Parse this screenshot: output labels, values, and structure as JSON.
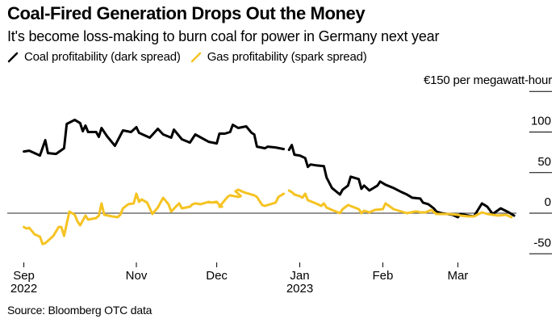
{
  "header": {
    "title": "Coal-Fired Generation Drops Out the Money",
    "subtitle": "It's become loss-making to burn coal for power in Germany next year"
  },
  "legend": [
    {
      "label": "Coal profitability (dark spread)",
      "color": "#000000",
      "icon": "diagonal-line-swatch"
    },
    {
      "label": "Gas profitability (spark spread)",
      "color": "#f5c322",
      "icon": "diagonal-line-swatch"
    }
  ],
  "footer": {
    "source": "Source: Bloomberg OTC data"
  },
  "chart_data": {
    "type": "line",
    "title": "Coal-Fired Generation Drops Out the Money",
    "subtitle": "It's become loss-making to burn coal for power in Germany next year",
    "xlabel": "",
    "ylabel": "€ per megawatt-hour",
    "unit_label": "€150 per megawatt-hour",
    "x_unit": "days since 2022-11-01",
    "xlim": [
      -44,
      143
    ],
    "ylim": [
      -50,
      150
    ],
    "yticks": [
      {
        "value": 150,
        "label": "€150 per megawatt-hour"
      },
      {
        "value": 100,
        "label": "100"
      },
      {
        "value": 50,
        "label": "50"
      },
      {
        "value": 0,
        "label": "0"
      },
      {
        "value": -50,
        "label": "-50"
      }
    ],
    "xticks": [
      {
        "value": -42,
        "label": "Sep",
        "sublabel": "2022"
      },
      {
        "value": 0,
        "label": "Nov",
        "sublabel": ""
      },
      {
        "value": 30,
        "label": "Dec",
        "sublabel": ""
      },
      {
        "value": 61,
        "label": "Jan",
        "sublabel": "2023"
      },
      {
        "value": 92,
        "label": "Feb",
        "sublabel": ""
      },
      {
        "value": 120,
        "label": "Mar",
        "sublabel": ""
      }
    ],
    "zero_line": true,
    "grid": false,
    "legend_position": "top-left",
    "series": [
      {
        "name": "Coal profitability (dark spread)",
        "color": "#000000",
        "points": [
          [
            -42,
            76
          ],
          [
            -40,
            77
          ],
          [
            -36,
            71
          ],
          [
            -34,
            90
          ],
          [
            -33,
            74
          ],
          [
            -30,
            73
          ],
          [
            -27,
            80
          ],
          [
            -26,
            110
          ],
          [
            -23,
            115
          ],
          [
            -21,
            111
          ],
          [
            -20,
            101
          ],
          [
            -19,
            108
          ],
          [
            -18,
            100
          ],
          [
            -15,
            100
          ],
          [
            -14,
            94
          ],
          [
            -13,
            105
          ],
          [
            -11,
            95
          ],
          [
            -8,
            83
          ],
          [
            -5,
            102
          ],
          [
            -2,
            100
          ],
          [
            0,
            106
          ],
          [
            1,
            99
          ],
          [
            5,
            93
          ],
          [
            8,
            104
          ],
          [
            10,
            97
          ],
          [
            13,
            93
          ],
          [
            14,
            103
          ],
          [
            17,
            91
          ],
          [
            20,
            87
          ],
          [
            22,
            97
          ],
          [
            27,
            88
          ],
          [
            30,
            86
          ],
          [
            31,
            98
          ],
          [
            33,
            98
          ],
          [
            35,
            100
          ],
          [
            36,
            109
          ],
          [
            38,
            105
          ],
          [
            41,
            107
          ],
          [
            43,
            99
          ],
          [
            44,
            97
          ],
          [
            45,
            82
          ],
          [
            48,
            80
          ],
          [
            49,
            82
          ],
          [
            52,
            81
          ],
          [
            55,
            79
          ],
          [
            56,
            null
          ],
          [
            57,
            78
          ],
          [
            58,
            84
          ],
          [
            59,
            72
          ],
          [
            61,
            71
          ],
          [
            63,
            68
          ],
          [
            64,
            57
          ],
          [
            65,
            60
          ],
          [
            67,
            59
          ],
          [
            70,
            58
          ],
          [
            71,
            44
          ],
          [
            73,
            31
          ],
          [
            76,
            23
          ],
          [
            77,
            29
          ],
          [
            79,
            34
          ],
          [
            80,
            45
          ],
          [
            83,
            42
          ],
          [
            84,
            30
          ],
          [
            85,
            34
          ],
          [
            87,
            28
          ],
          [
            90,
            34
          ],
          [
            91,
            39
          ],
          [
            93,
            35
          ],
          [
            96,
            31
          ],
          [
            99,
            26
          ],
          [
            101,
            23
          ],
          [
            103,
            19
          ],
          [
            106,
            18
          ],
          [
            107,
            13
          ],
          [
            109,
            11
          ],
          [
            111,
            6
          ],
          [
            112,
            2
          ],
          [
            114,
            0
          ],
          [
            118,
            -2
          ],
          [
            120,
            -5
          ],
          [
            121,
            -1
          ],
          [
            124,
            -3
          ],
          [
            126,
            -4
          ],
          [
            129,
            12
          ],
          [
            131,
            8
          ],
          [
            133,
            -1
          ],
          [
            136,
            6
          ],
          [
            139,
            1
          ],
          [
            141,
            -3
          ]
        ]
      },
      {
        "name": "Gas profitability (spark spread)",
        "color": "#f5c322",
        "points": [
          [
            -42,
            -17
          ],
          [
            -41,
            -19
          ],
          [
            -40,
            -18
          ],
          [
            -38,
            -26
          ],
          [
            -36,
            -29
          ],
          [
            -35,
            -38
          ],
          [
            -34,
            -37
          ],
          [
            -31,
            -28
          ],
          [
            -29,
            -17
          ],
          [
            -28,
            -17
          ],
          [
            -27,
            -28
          ],
          [
            -25,
            2
          ],
          [
            -23,
            -2
          ],
          [
            -22,
            -10
          ],
          [
            -21,
            -15
          ],
          [
            -19,
            -3
          ],
          [
            -18,
            -8
          ],
          [
            -15,
            -6
          ],
          [
            -14,
            -3
          ],
          [
            -13,
            12
          ],
          [
            -12,
            -2
          ],
          [
            -9,
            -4
          ],
          [
            -7,
            -5
          ],
          [
            -6,
            -2
          ],
          [
            -5,
            6
          ],
          [
            -3,
            11
          ],
          [
            -1,
            12
          ],
          [
            0,
            24
          ],
          [
            1,
            14
          ],
          [
            2,
            17
          ],
          [
            4,
            13
          ],
          [
            6,
            -1
          ],
          [
            8,
            7
          ],
          [
            10,
            19
          ],
          [
            12,
            11
          ],
          [
            13,
            2
          ],
          [
            15,
            9
          ],
          [
            16,
            12
          ],
          [
            17,
            6
          ],
          [
            20,
            8
          ],
          [
            21,
            11
          ],
          [
            22,
            12
          ],
          [
            24,
            11
          ],
          [
            26,
            13
          ],
          [
            27,
            14
          ],
          [
            28,
            13
          ],
          [
            30,
            14
          ],
          [
            31,
            10
          ],
          [
            32,
            8
          ],
          [
            31,
            8
          ],
          [
            34,
            20
          ],
          [
            35,
            22
          ],
          [
            38,
            20
          ],
          [
            39,
            21
          ],
          [
            37,
            27
          ],
          [
            38,
            29
          ],
          [
            40,
            26
          ],
          [
            42,
            24
          ],
          [
            44,
            22
          ],
          [
            45,
            20
          ],
          [
            47,
            10
          ],
          [
            48,
            9
          ],
          [
            50,
            11
          ],
          [
            52,
            13
          ],
          [
            53,
            20
          ],
          [
            55,
            24
          ],
          [
            56,
            null
          ],
          [
            57,
            28
          ],
          [
            58,
            26
          ],
          [
            59,
            23
          ],
          [
            61,
            21
          ],
          [
            62,
            19
          ],
          [
            63,
            24
          ],
          [
            64,
            16
          ],
          [
            67,
            12
          ],
          [
            69,
            9
          ],
          [
            70,
            12
          ],
          [
            71,
            7
          ],
          [
            73,
            4
          ],
          [
            76,
            0
          ],
          [
            77,
            5
          ],
          [
            79,
            10
          ],
          [
            83,
            5
          ],
          [
            84,
            0
          ],
          [
            85,
            3
          ],
          [
            87,
            1
          ],
          [
            89,
            4
          ],
          [
            92,
            5
          ],
          [
            93,
            12
          ],
          [
            96,
            5
          ],
          [
            99,
            2
          ],
          [
            101,
            0
          ],
          [
            104,
            2
          ],
          [
            105,
            2
          ],
          [
            106,
            1
          ],
          [
            108,
            1
          ],
          [
            110,
            4
          ],
          [
            112,
            -1
          ],
          [
            113,
            -1
          ],
          [
            117,
            -1
          ],
          [
            120,
            -2
          ],
          [
            121,
            -3
          ],
          [
            124,
            -4
          ],
          [
            126,
            -4
          ],
          [
            129,
            1
          ],
          [
            131,
            -1
          ],
          [
            135,
            -3
          ],
          [
            138,
            -2
          ],
          [
            140,
            -5
          ]
        ]
      }
    ]
  }
}
